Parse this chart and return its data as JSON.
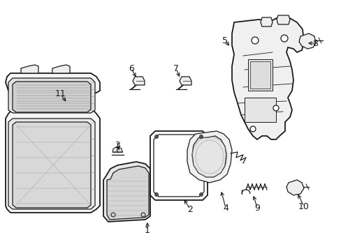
{
  "bg_color": "#ffffff",
  "line_color": "#1a1a1a",
  "figsize": [
    4.89,
    3.6
  ],
  "dpi": 100,
  "labels": {
    "1": [
      211,
      330,
      211,
      316
    ],
    "2": [
      272,
      300,
      262,
      284
    ],
    "3": [
      168,
      208,
      172,
      218
    ],
    "4": [
      323,
      298,
      316,
      272
    ],
    "5": [
      322,
      58,
      330,
      68
    ],
    "6": [
      188,
      98,
      196,
      113
    ],
    "7": [
      252,
      98,
      258,
      113
    ],
    "8": [
      451,
      62,
      438,
      62
    ],
    "9": [
      368,
      298,
      362,
      278
    ],
    "10": [
      435,
      296,
      425,
      276
    ],
    "11": [
      87,
      135,
      96,
      148
    ]
  }
}
